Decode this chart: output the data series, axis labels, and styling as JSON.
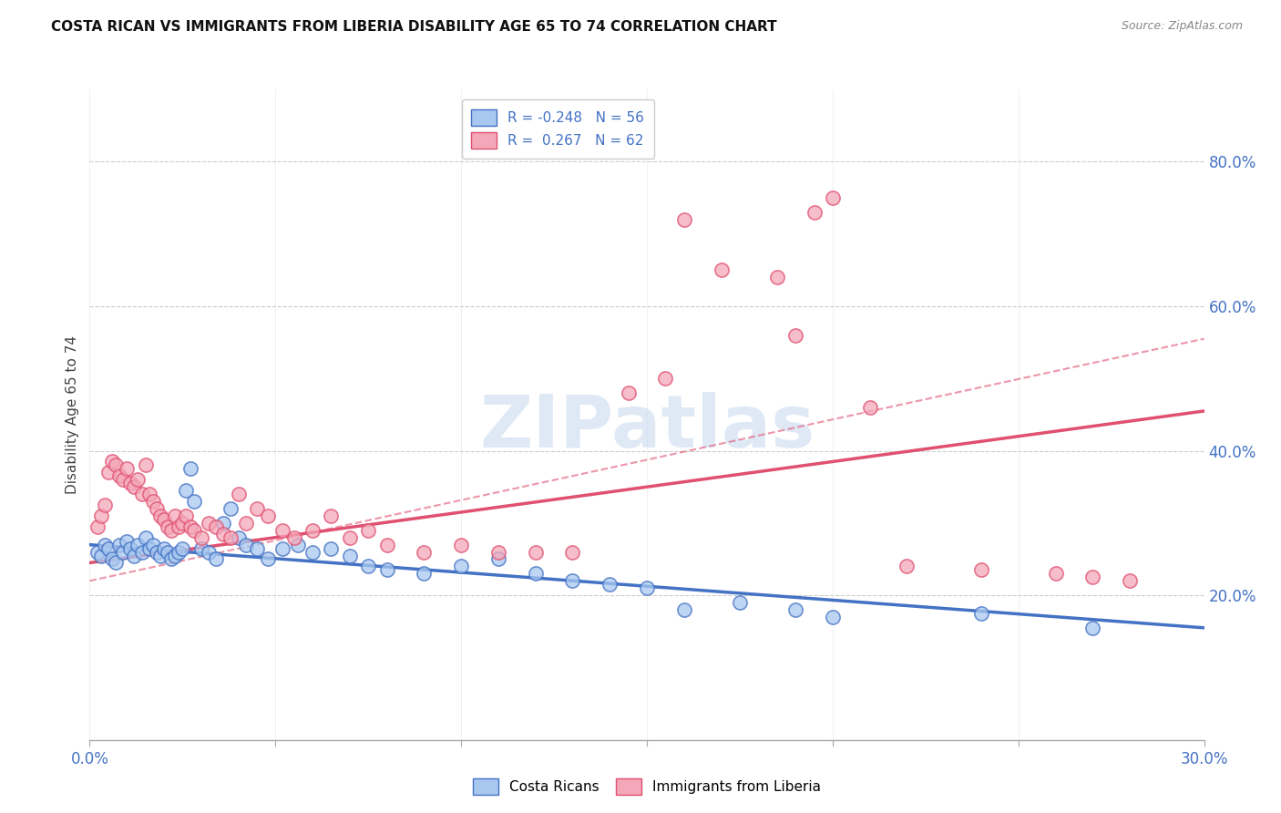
{
  "title": "COSTA RICAN VS IMMIGRANTS FROM LIBERIA DISABILITY AGE 65 TO 74 CORRELATION CHART",
  "source": "Source: ZipAtlas.com",
  "ylabel": "Disability Age 65 to 74",
  "xlim": [
    0.0,
    0.3
  ],
  "ylim": [
    0.0,
    0.9
  ],
  "xtick_positions": [
    0.0,
    0.05,
    0.1,
    0.15,
    0.2,
    0.25,
    0.3
  ],
  "xticklabels": [
    "0.0%",
    "",
    "",
    "",
    "",
    "",
    "30.0%"
  ],
  "yticks_right": [
    0.2,
    0.4,
    0.6,
    0.8
  ],
  "ytick_right_labels": [
    "20.0%",
    "40.0%",
    "60.0%",
    "80.0%"
  ],
  "legend_r1_text": "R = -0.248   N = 56",
  "legend_r2_text": "R =  0.267   N = 62",
  "color_blue_fill": "#A8C8F0",
  "color_blue_edge": "#4472C4",
  "color_pink_fill": "#F4A7B9",
  "color_pink_edge": "#E05070",
  "watermark_text": "ZIPatlas",
  "watermark_color": "#C5D8F0",
  "grid_color": "#CCCCCC",
  "bg_color": "#FFFFFF",
  "blue_trend": [
    0.27,
    0.155
  ],
  "pink_solid_trend": [
    0.245,
    0.455
  ],
  "pink_dashed_trend": [
    0.22,
    0.555
  ],
  "costa_ricans_x": [
    0.002,
    0.003,
    0.004,
    0.005,
    0.006,
    0.007,
    0.008,
    0.009,
    0.01,
    0.011,
    0.012,
    0.013,
    0.014,
    0.015,
    0.016,
    0.017,
    0.018,
    0.019,
    0.02,
    0.021,
    0.022,
    0.023,
    0.024,
    0.025,
    0.026,
    0.027,
    0.028,
    0.03,
    0.032,
    0.034,
    0.036,
    0.038,
    0.04,
    0.042,
    0.045,
    0.048,
    0.052,
    0.056,
    0.06,
    0.065,
    0.07,
    0.075,
    0.08,
    0.09,
    0.1,
    0.11,
    0.12,
    0.13,
    0.14,
    0.15,
    0.16,
    0.175,
    0.19,
    0.2,
    0.24,
    0.27
  ],
  "costa_ricans_y": [
    0.26,
    0.255,
    0.27,
    0.265,
    0.25,
    0.245,
    0.27,
    0.26,
    0.275,
    0.265,
    0.255,
    0.27,
    0.26,
    0.28,
    0.265,
    0.27,
    0.26,
    0.255,
    0.265,
    0.26,
    0.25,
    0.255,
    0.26,
    0.265,
    0.345,
    0.375,
    0.33,
    0.265,
    0.26,
    0.25,
    0.3,
    0.32,
    0.28,
    0.27,
    0.265,
    0.25,
    0.265,
    0.27,
    0.26,
    0.265,
    0.255,
    0.24,
    0.235,
    0.23,
    0.24,
    0.25,
    0.23,
    0.22,
    0.215,
    0.21,
    0.18,
    0.19,
    0.18,
    0.17,
    0.175,
    0.155
  ],
  "liberia_x": [
    0.002,
    0.003,
    0.004,
    0.005,
    0.006,
    0.007,
    0.008,
    0.009,
    0.01,
    0.011,
    0.012,
    0.013,
    0.014,
    0.015,
    0.016,
    0.017,
    0.018,
    0.019,
    0.02,
    0.021,
    0.022,
    0.023,
    0.024,
    0.025,
    0.026,
    0.027,
    0.028,
    0.03,
    0.032,
    0.034,
    0.036,
    0.038,
    0.04,
    0.042,
    0.045,
    0.048,
    0.052,
    0.055,
    0.06,
    0.065,
    0.07,
    0.075,
    0.08,
    0.09,
    0.1,
    0.11,
    0.12,
    0.13,
    0.145,
    0.155,
    0.16,
    0.17,
    0.185,
    0.19,
    0.195,
    0.2,
    0.21,
    0.22,
    0.24,
    0.26,
    0.27,
    0.28
  ],
  "liberia_y": [
    0.295,
    0.31,
    0.325,
    0.37,
    0.385,
    0.38,
    0.365,
    0.36,
    0.375,
    0.355,
    0.35,
    0.36,
    0.34,
    0.38,
    0.34,
    0.33,
    0.32,
    0.31,
    0.305,
    0.295,
    0.29,
    0.31,
    0.295,
    0.3,
    0.31,
    0.295,
    0.29,
    0.28,
    0.3,
    0.295,
    0.285,
    0.28,
    0.34,
    0.3,
    0.32,
    0.31,
    0.29,
    0.28,
    0.29,
    0.31,
    0.28,
    0.29,
    0.27,
    0.26,
    0.27,
    0.26,
    0.26,
    0.26,
    0.48,
    0.5,
    0.72,
    0.65,
    0.64,
    0.56,
    0.73,
    0.75,
    0.46,
    0.24,
    0.235,
    0.23,
    0.225,
    0.22
  ]
}
